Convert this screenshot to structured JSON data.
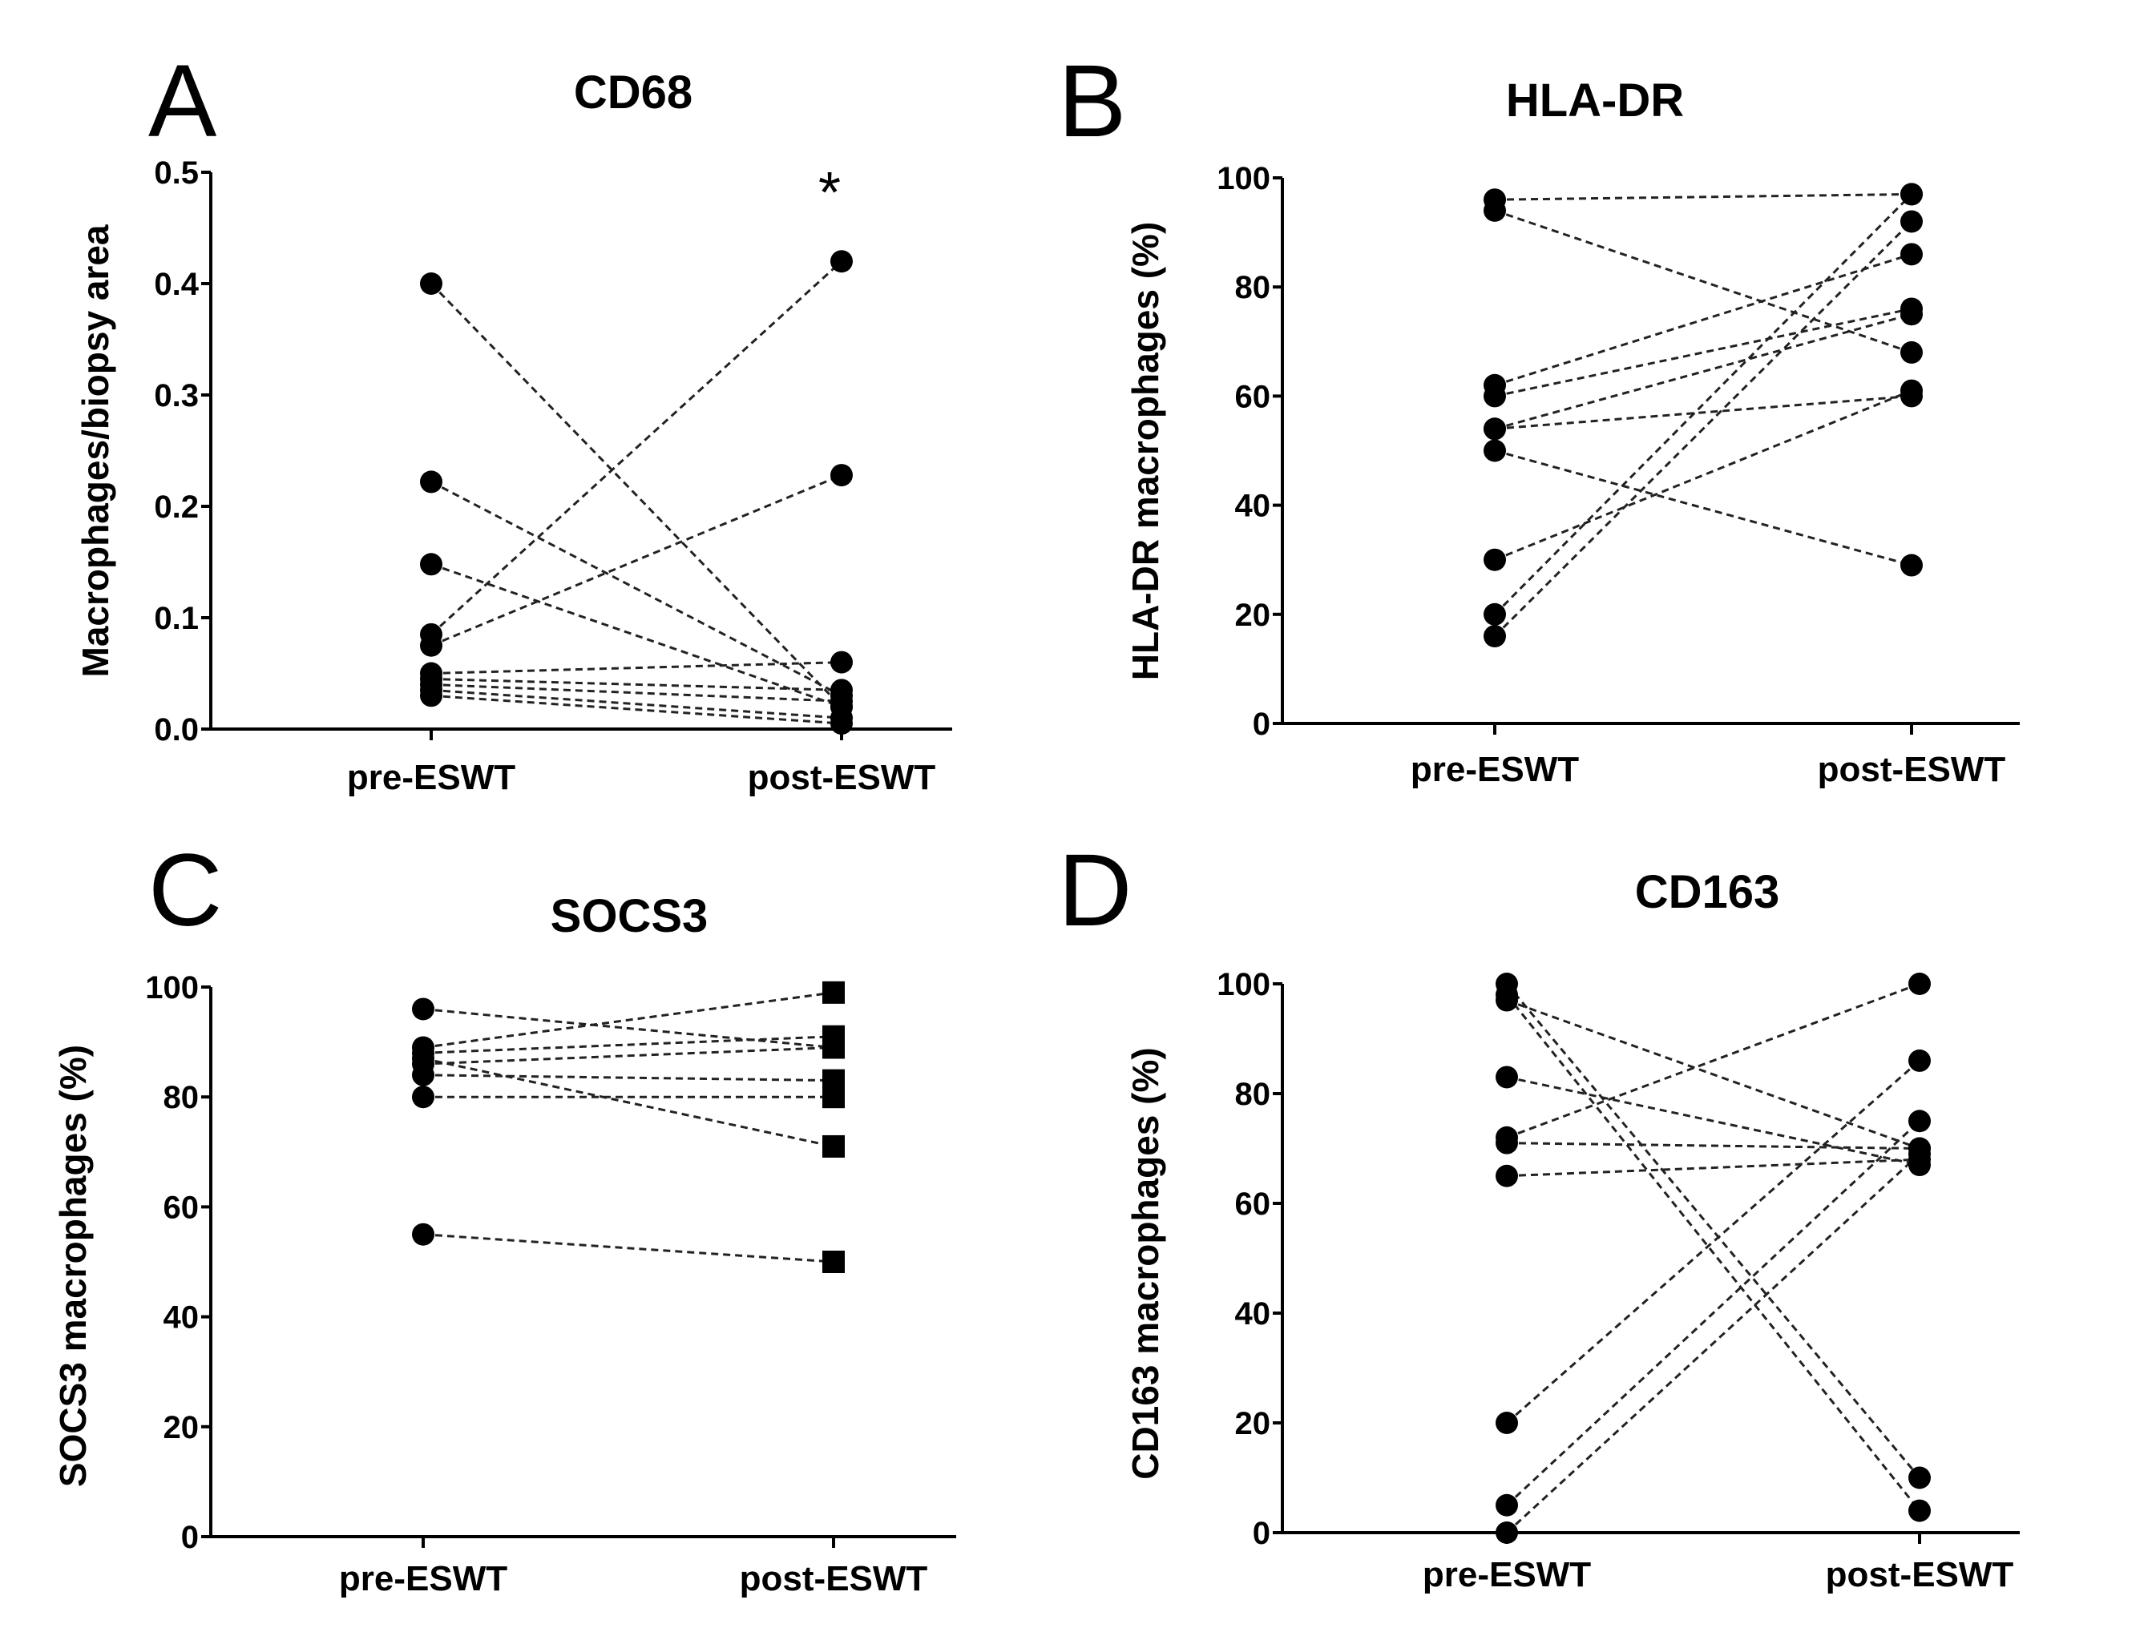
{
  "figure": {
    "background": "#ffffff",
    "ink": "#000000"
  },
  "chart_data": [
    {
      "panel": "A",
      "type": "scatter",
      "title": "CD68",
      "xlabel": "",
      "ylabel": "Macrophages/biopsy area",
      "categories": [
        "pre-ESWT",
        "post-ESWT"
      ],
      "ylim": [
        0,
        0.5
      ],
      "yticks": [
        "0.0",
        "0.1",
        "0.2",
        "0.3",
        "0.4",
        "0.5"
      ],
      "marker": "circle",
      "annotation": "*",
      "pairs": [
        [
          0.4,
          0.02
        ],
        [
          0.222,
          0.03
        ],
        [
          0.148,
          0.02
        ],
        [
          0.085,
          0.42
        ],
        [
          0.075,
          0.228
        ],
        [
          0.05,
          0.06
        ],
        [
          0.045,
          0.035
        ],
        [
          0.04,
          0.025
        ],
        [
          0.035,
          0.01
        ],
        [
          0.03,
          0.005
        ]
      ]
    },
    {
      "panel": "B",
      "type": "scatter",
      "title": "HLA-DR",
      "xlabel": "",
      "ylabel": "HLA-DR macrophages (%)",
      "categories": [
        "pre-ESWT",
        "post-ESWT"
      ],
      "ylim": [
        0,
        100
      ],
      "yticks": [
        "0",
        "20",
        "40",
        "60",
        "80",
        "100"
      ],
      "marker": "circle",
      "pairs": [
        [
          96,
          97
        ],
        [
          94,
          68
        ],
        [
          62,
          86
        ],
        [
          60,
          76
        ],
        [
          54,
          75
        ],
        [
          54,
          60
        ],
        [
          50,
          29
        ],
        [
          30,
          61
        ],
        [
          20,
          97
        ],
        [
          16,
          92
        ]
      ]
    },
    {
      "panel": "C",
      "type": "scatter",
      "title": "SOCS3",
      "xlabel": "",
      "ylabel": "SOCS3 macrophages (%)",
      "categories": [
        "pre-ESWT",
        "post-ESWT"
      ],
      "ylim": [
        0,
        100
      ],
      "yticks": [
        "0",
        "20",
        "40",
        "60",
        "80",
        "100"
      ],
      "marker_pre": "circle",
      "marker_post": "square",
      "pairs": [
        [
          96,
          89
        ],
        [
          89,
          99
        ],
        [
          88,
          91
        ],
        [
          86,
          89
        ],
        [
          84,
          83
        ],
        [
          80,
          80
        ],
        [
          87,
          71
        ],
        [
          55,
          50
        ]
      ]
    },
    {
      "panel": "D",
      "type": "scatter",
      "title": "CD163",
      "xlabel": "",
      "ylabel": "CD163 macrophages (%)",
      "categories": [
        "pre-ESWT",
        "post-ESWT"
      ],
      "ylim": [
        0,
        100
      ],
      "yticks": [
        "0",
        "20",
        "40",
        "60",
        "80",
        "100"
      ],
      "marker": "circle",
      "pairs": [
        [
          100,
          10
        ],
        [
          98,
          4
        ],
        [
          97,
          70
        ],
        [
          83,
          67
        ],
        [
          72,
          100
        ],
        [
          71,
          70
        ],
        [
          65,
          68
        ],
        [
          20,
          86
        ],
        [
          5,
          75
        ],
        [
          0,
          69
        ]
      ]
    }
  ]
}
